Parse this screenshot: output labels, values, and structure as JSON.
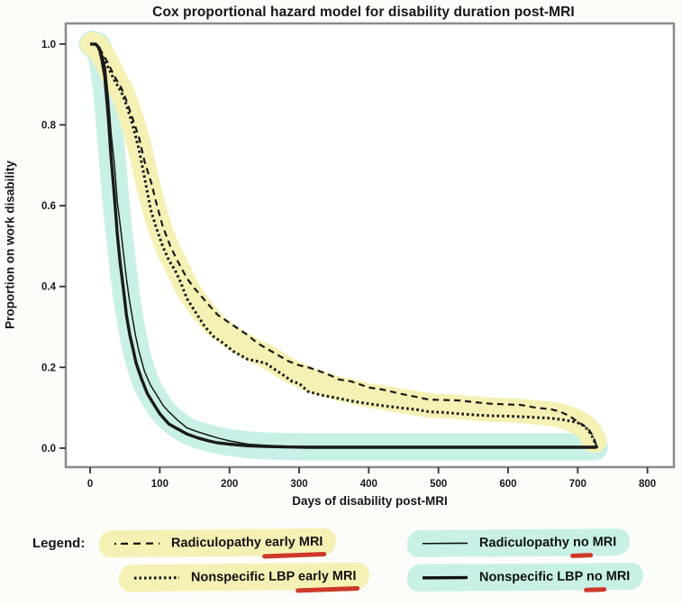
{
  "chart_data": {
    "type": "line",
    "title": "Cox proportional hazard model for disability duration post-MRI",
    "xlabel": "Days of disability post-MRI",
    "ylabel": "Proportion on work disability",
    "xlim": [
      0,
      800
    ],
    "ylim": [
      0.0,
      1.0
    ],
    "grid": false,
    "legend_position": "bottom",
    "xtick_values": [
      0,
      100,
      200,
      300,
      400,
      500,
      600,
      700,
      800
    ],
    "xtick_labels": [
      "0",
      "100",
      "200",
      "300",
      "400",
      "500",
      "600",
      "700",
      "800"
    ],
    "ytick_values": [
      0.0,
      0.2,
      0.4,
      0.6,
      0.8,
      1.0
    ],
    "ytick_labels": [
      "0.0",
      "0.2",
      "0.4",
      "0.6",
      "0.8",
      "1.0"
    ],
    "series": [
      {
        "name": "Radiculopathy early MRI",
        "style": "dashed",
        "band": "yellow",
        "points": [
          [
            0,
            1.0
          ],
          [
            8,
            1.0
          ],
          [
            15,
            0.985
          ],
          [
            25,
            0.955
          ],
          [
            35,
            0.92
          ],
          [
            45,
            0.89
          ],
          [
            52,
            0.86
          ],
          [
            60,
            0.82
          ],
          [
            70,
            0.77
          ],
          [
            78,
            0.71
          ],
          [
            88,
            0.655
          ],
          [
            96,
            0.6
          ],
          [
            104,
            0.55
          ],
          [
            115,
            0.5
          ],
          [
            125,
            0.465
          ],
          [
            139,
            0.42
          ],
          [
            150,
            0.395
          ],
          [
            160,
            0.375
          ],
          [
            170,
            0.355
          ],
          [
            183,
            0.33
          ],
          [
            200,
            0.31
          ],
          [
            213,
            0.295
          ],
          [
            226,
            0.28
          ],
          [
            240,
            0.26
          ],
          [
            255,
            0.245
          ],
          [
            270,
            0.23
          ],
          [
            285,
            0.215
          ],
          [
            300,
            0.205
          ],
          [
            313,
            0.2
          ],
          [
            330,
            0.19
          ],
          [
            345,
            0.18
          ],
          [
            357,
            0.17
          ],
          [
            375,
            0.165
          ],
          [
            400,
            0.15
          ],
          [
            420,
            0.145
          ],
          [
            444,
            0.135
          ],
          [
            465,
            0.128
          ],
          [
            487,
            0.12
          ],
          [
            510,
            0.119
          ],
          [
            531,
            0.118
          ],
          [
            550,
            0.114
          ],
          [
            575,
            0.11
          ],
          [
            600,
            0.108
          ],
          [
            618,
            0.107
          ],
          [
            640,
            0.1
          ],
          [
            662,
            0.096
          ],
          [
            675,
            0.09
          ],
          [
            688,
            0.08
          ],
          [
            700,
            0.065
          ],
          [
            714,
            0.05
          ],
          [
            722,
            0.03
          ],
          [
            727,
            0.005
          ]
        ]
      },
      {
        "name": "Nonspecific LBP early MRI",
        "style": "dotted",
        "band": "yellow",
        "points": [
          [
            0,
            1.0
          ],
          [
            8,
            1.0
          ],
          [
            15,
            0.98
          ],
          [
            25,
            0.945
          ],
          [
            35,
            0.91
          ],
          [
            45,
            0.88
          ],
          [
            52,
            0.85
          ],
          [
            61,
            0.8
          ],
          [
            70,
            0.74
          ],
          [
            78,
            0.67
          ],
          [
            87,
            0.59
          ],
          [
            95,
            0.545
          ],
          [
            104,
            0.5
          ],
          [
            113,
            0.465
          ],
          [
            122,
            0.44
          ],
          [
            130,
            0.41
          ],
          [
            139,
            0.37
          ],
          [
            150,
            0.34
          ],
          [
            165,
            0.3
          ],
          [
            178,
            0.275
          ],
          [
            191,
            0.26
          ],
          [
            205,
            0.24
          ],
          [
            226,
            0.22
          ],
          [
            240,
            0.215
          ],
          [
            252,
            0.21
          ],
          [
            265,
            0.195
          ],
          [
            278,
            0.18
          ],
          [
            290,
            0.165
          ],
          [
            300,
            0.16
          ],
          [
            313,
            0.14
          ],
          [
            330,
            0.132
          ],
          [
            357,
            0.123
          ],
          [
            380,
            0.115
          ],
          [
            400,
            0.11
          ],
          [
            420,
            0.105
          ],
          [
            444,
            0.1
          ],
          [
            470,
            0.095
          ],
          [
            487,
            0.09
          ],
          [
            510,
            0.088
          ],
          [
            531,
            0.085
          ],
          [
            555,
            0.082
          ],
          [
            575,
            0.08
          ],
          [
            600,
            0.079
          ],
          [
            618,
            0.078
          ],
          [
            640,
            0.076
          ],
          [
            662,
            0.074
          ],
          [
            680,
            0.07
          ],
          [
            695,
            0.065
          ],
          [
            705,
            0.06
          ],
          [
            715,
            0.045
          ],
          [
            722,
            0.025
          ],
          [
            727,
            0.003
          ]
        ]
      },
      {
        "name": "Radiculopathy no MRI",
        "style": "solid-thin",
        "band": "cyan",
        "points": [
          [
            0,
            1.0
          ],
          [
            8,
            1.0
          ],
          [
            14,
            0.99
          ],
          [
            18,
            0.97
          ],
          [
            22,
            0.94
          ],
          [
            26,
            0.87
          ],
          [
            30,
            0.78
          ],
          [
            35,
            0.7
          ],
          [
            39,
            0.61
          ],
          [
            44,
            0.54
          ],
          [
            48,
            0.48
          ],
          [
            52,
            0.42
          ],
          [
            56,
            0.37
          ],
          [
            61,
            0.32
          ],
          [
            65,
            0.28
          ],
          [
            70,
            0.24
          ],
          [
            78,
            0.19
          ],
          [
            87,
            0.155
          ],
          [
            96,
            0.13
          ],
          [
            105,
            0.105
          ],
          [
            113,
            0.09
          ],
          [
            125,
            0.07
          ],
          [
            139,
            0.05
          ],
          [
            155,
            0.04
          ],
          [
            170,
            0.032
          ],
          [
            183,
            0.025
          ],
          [
            200,
            0.018
          ],
          [
            226,
            0.01
          ],
          [
            250,
            0.007
          ],
          [
            280,
            0.005
          ],
          [
            313,
            0.004
          ],
          [
            400,
            0.004
          ],
          [
            500,
            0.004
          ],
          [
            600,
            0.004
          ],
          [
            700,
            0.004
          ],
          [
            727,
            0.004
          ],
          [
            727,
            0.0
          ]
        ]
      },
      {
        "name": "Nonspecific LBP no MRI",
        "style": "solid-thick",
        "band": "cyan",
        "points": [
          [
            0,
            1.0
          ],
          [
            8,
            1.0
          ],
          [
            13,
            0.99
          ],
          [
            17,
            0.96
          ],
          [
            21,
            0.92
          ],
          [
            26,
            0.82
          ],
          [
            30,
            0.72
          ],
          [
            35,
            0.62
          ],
          [
            39,
            0.53
          ],
          [
            43,
            0.46
          ],
          [
            48,
            0.39
          ],
          [
            52,
            0.33
          ],
          [
            57,
            0.28
          ],
          [
            61,
            0.25
          ],
          [
            66,
            0.21
          ],
          [
            74,
            0.17
          ],
          [
            82,
            0.135
          ],
          [
            91,
            0.11
          ],
          [
            100,
            0.085
          ],
          [
            113,
            0.06
          ],
          [
            125,
            0.048
          ],
          [
            139,
            0.035
          ],
          [
            155,
            0.025
          ],
          [
            170,
            0.018
          ],
          [
            183,
            0.013
          ],
          [
            200,
            0.01
          ],
          [
            226,
            0.006
          ],
          [
            250,
            0.004
          ],
          [
            280,
            0.003
          ],
          [
            313,
            0.002
          ],
          [
            400,
            0.002
          ],
          [
            500,
            0.002
          ],
          [
            600,
            0.002
          ],
          [
            700,
            0.002
          ],
          [
            727,
            0.002
          ],
          [
            727,
            0.0
          ]
        ]
      }
    ]
  },
  "legend": {
    "label": "Legend:",
    "items": [
      {
        "pre": "Radiculopathy ",
        "underlined": "early MRI",
        "post": "",
        "style": "dashed",
        "band": "yellow"
      },
      {
        "pre": "Radiculopathy ",
        "underlined": "no",
        "post": " MRI",
        "style": "solid-thin",
        "band": "cyan"
      },
      {
        "pre": "Nonspecific LBP ",
        "underlined": "early MRI",
        "post": "",
        "style": "dotted",
        "band": "yellow"
      },
      {
        "pre": "Nonspecific LBP ",
        "underlined": "no",
        "post": " MRI",
        "style": "solid-thick",
        "band": "cyan"
      }
    ]
  },
  "colors": {
    "yellow_highlight": "#f5f1b4",
    "cyan_highlight": "#c9f0e7",
    "red_underline": "#cd3929",
    "curve": "#1a1a1a",
    "frame": "#8a8a8a",
    "plot_background": "#ffffff"
  }
}
